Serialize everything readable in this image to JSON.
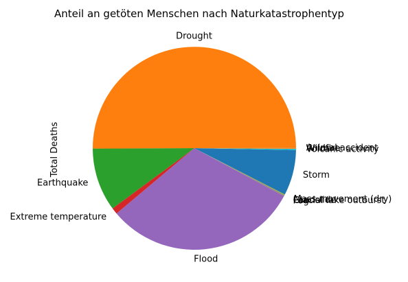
{
  "chart_data": {
    "type": "pie",
    "title": "Anteil an getöten Menschen nach Naturkatastrophentyp",
    "ylabel": "Total Deaths",
    "legend": "none",
    "start_angle_deg": 0,
    "direction": "counterclockwise",
    "slices": [
      {
        "label": "Animal accident",
        "value": 0.02,
        "color": "#1f77b4"
      },
      {
        "label": "Drought",
        "value": 49.8,
        "color": "#ff7f0e"
      },
      {
        "label": "Earthquake",
        "value": 10.0,
        "color": "#2ca02c"
      },
      {
        "label": "Extreme temperature",
        "value": 1.0,
        "color": "#d62728"
      },
      {
        "label": "Flood",
        "value": 30.9,
        "color": "#9467bd"
      },
      {
        "label": "Fog",
        "value": 0.02,
        "color": "#8c564b"
      },
      {
        "label": "Glacial lake outburst",
        "value": 0.02,
        "color": "#e377c2"
      },
      {
        "label": "Landslide",
        "value": 0.15,
        "color": "#7f7f7f"
      },
      {
        "label": "Mass movement (dry)",
        "value": 0.1,
        "color": "#bcbd22"
      },
      {
        "label": "Storm",
        "value": 7.2,
        "color": "#1f77b4"
      },
      {
        "label": "Volcanic activity",
        "value": 0.2,
        "color": "#17becf"
      },
      {
        "label": "Wildfire",
        "value": 0.1,
        "color": "#ff7f0e"
      }
    ]
  }
}
